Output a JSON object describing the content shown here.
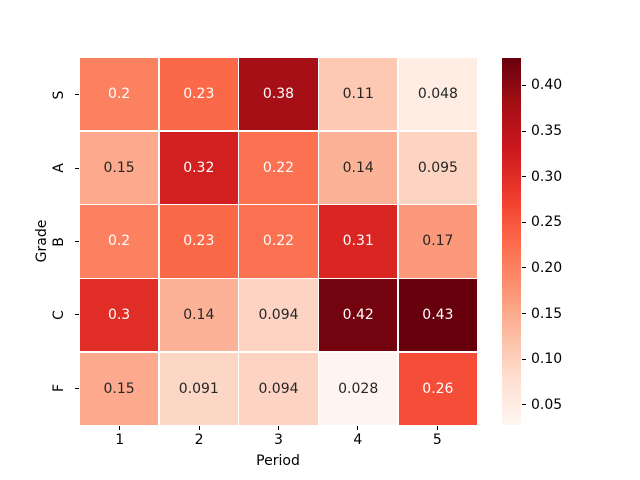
{
  "figure": {
    "background": "#ffffff"
  },
  "chart_data": {
    "type": "heatmap",
    "title": "",
    "xlabel": "Period",
    "ylabel": "Grade",
    "x_categories": [
      "1",
      "2",
      "3",
      "4",
      "5"
    ],
    "y_categories": [
      "S",
      "A",
      "B",
      "C",
      "F"
    ],
    "values": [
      [
        0.2,
        0.23,
        0.38,
        0.11,
        0.048
      ],
      [
        0.15,
        0.32,
        0.22,
        0.14,
        0.095
      ],
      [
        0.2,
        0.23,
        0.22,
        0.31,
        0.17
      ],
      [
        0.3,
        0.14,
        0.094,
        0.42,
        0.43
      ],
      [
        0.15,
        0.091,
        0.094,
        0.028,
        0.26
      ]
    ],
    "annotations": [
      [
        "0.2",
        "0.23",
        "0.38",
        "0.11",
        "0.048"
      ],
      [
        "0.15",
        "0.32",
        "0.22",
        "0.14",
        "0.095"
      ],
      [
        "0.2",
        "0.23",
        "0.22",
        "0.31",
        "0.17"
      ],
      [
        "0.3",
        "0.14",
        "0.094",
        "0.42",
        "0.43"
      ],
      [
        "0.15",
        "0.091",
        "0.094",
        "0.028",
        "0.26"
      ]
    ],
    "cell_colors": [
      [
        "#fb8161",
        "#fb6949",
        "#a50f15",
        "#fdc9b3",
        "#ffede4"
      ],
      [
        "#fca98d",
        "#d21f20",
        "#fb7151",
        "#fcb296",
        "#fdd4c2"
      ],
      [
        "#fb8161",
        "#fb6949",
        "#fb7151",
        "#d92623",
        "#fc997a"
      ],
      [
        "#e02d26",
        "#fcb296",
        "#fdd4c3",
        "#73030f",
        "#67000d"
      ],
      [
        "#fca98d",
        "#fdd7c6",
        "#fdd4c3",
        "#fff5f0",
        "#f44d38"
      ]
    ],
    "text_colors": [
      [
        "#ffffff",
        "#ffffff",
        "#ffffff",
        "#262626",
        "#262626"
      ],
      [
        "#262626",
        "#ffffff",
        "#ffffff",
        "#262626",
        "#262626"
      ],
      [
        "#ffffff",
        "#ffffff",
        "#ffffff",
        "#ffffff",
        "#262626"
      ],
      [
        "#ffffff",
        "#262626",
        "#262626",
        "#ffffff",
        "#ffffff"
      ],
      [
        "#262626",
        "#262626",
        "#262626",
        "#262626",
        "#ffffff"
      ]
    ],
    "vmin": 0.028,
    "vmax": 0.43,
    "colormap": "Reds",
    "grid_line_color": "#ffffff",
    "legend_position": "right",
    "colorbar": {
      "tick_labels": [
        "0.40",
        "0.35",
        "0.30",
        "0.25",
        "0.20",
        "0.15",
        "0.10",
        "0.05"
      ],
      "tick_values": [
        0.4,
        0.35,
        0.3,
        0.25,
        0.2,
        0.15,
        0.1,
        0.05
      ],
      "gradient_stops": [
        "#fff5f0",
        "#fee0d2",
        "#fcbba1",
        "#fc9272",
        "#fb6a4a",
        "#ef3b2c",
        "#cb181d",
        "#a50f15",
        "#67000d"
      ]
    }
  }
}
